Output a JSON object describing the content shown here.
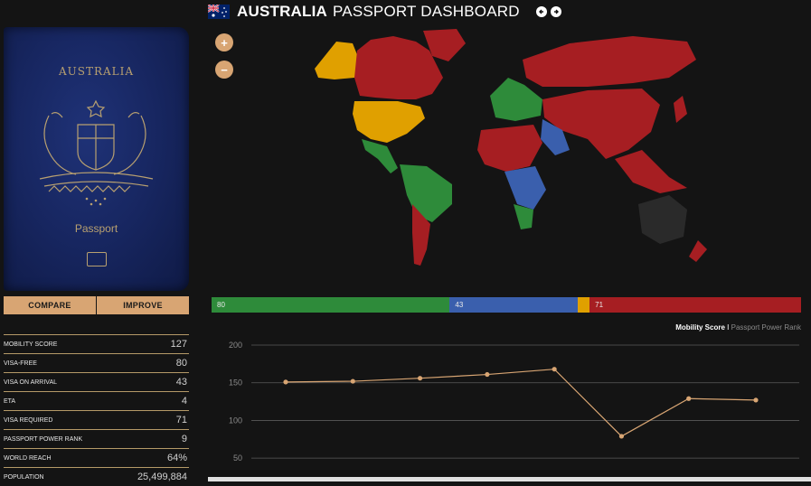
{
  "header": {
    "country": "AUSTRALIA",
    "title_rest": "PASSPORT DASHBOARD",
    "prev_icon": "arrow-left",
    "next_icon": "arrow-right"
  },
  "passport": {
    "country": "AUSTRALIA",
    "label": "Passport",
    "cover_color": "#1b2b6b",
    "emblem": "coat-of-arms-emblem"
  },
  "buttons": {
    "compare": "COMPARE",
    "improve": "IMPROVE"
  },
  "stats": [
    {
      "label": "MOBILITY SCORE",
      "value": "127"
    },
    {
      "label": "VISA-FREE",
      "value": "80"
    },
    {
      "label": "VISA ON ARRIVAL",
      "value": "43"
    },
    {
      "label": "ETA",
      "value": "4"
    },
    {
      "label": "VISA REQUIRED",
      "value": "71"
    },
    {
      "label": "PASSPORT POWER RANK",
      "value": "9"
    },
    {
      "label": "WORLD REACH",
      "value": "64%"
    },
    {
      "label": "POPULATION",
      "value": "25,499,884"
    }
  ],
  "zoom": {
    "in": "+",
    "out": "−"
  },
  "legend_colors": {
    "visa_free": "#2e8b3a",
    "visa_on_arrival": "#3a5fad",
    "eta": "#e0a000",
    "visa_required": "#a61e22",
    "self": "#2a2a2a"
  },
  "visa_bar": {
    "visa_free": 80,
    "visa_on_arrival": 43,
    "eta": 4,
    "visa_required": 71,
    "visa_free_label": "80",
    "visa_on_arrival_label": "43",
    "visa_required_label": "71"
  },
  "chart_toggle": {
    "active": "Mobility Score",
    "separator": "I",
    "inactive": "Passport Power Rank"
  },
  "chart_data": {
    "type": "line",
    "title": "",
    "xlabel": "",
    "ylabel": "",
    "ylim": [
      25,
      200
    ],
    "yticks": [
      200,
      150,
      100,
      50
    ],
    "grid": true,
    "series": [
      {
        "values": [
          151,
          152,
          156,
          161,
          168,
          79,
          129,
          127
        ]
      }
    ],
    "line_color": "#d8a573"
  }
}
